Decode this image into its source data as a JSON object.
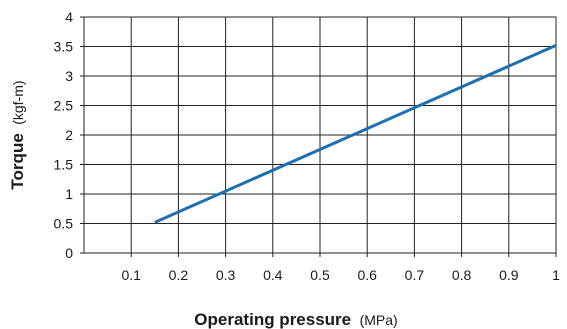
{
  "chart_data": {
    "type": "line",
    "title": "",
    "xlabel": "Operating pressure",
    "xlabel_unit": "(MPa)",
    "ylabel": "Torque",
    "ylabel_unit": "(kgf-m)",
    "xlim": [
      0,
      1
    ],
    "ylim": [
      0,
      4
    ],
    "x_ticks": [
      "0.1",
      "0.2",
      "0.3",
      "0.4",
      "0.5",
      "0.6",
      "0.7",
      "0.8",
      "0.9",
      "1"
    ],
    "y_ticks": [
      "0",
      "0.5",
      "1",
      "1.5",
      "2",
      "2.5",
      "3",
      "3.5",
      "4"
    ],
    "x_tick_values": [
      0.1,
      0.2,
      0.3,
      0.4,
      0.5,
      0.6,
      0.7,
      0.8,
      0.9,
      1
    ],
    "y_tick_values": [
      0,
      0.5,
      1,
      1.5,
      2,
      2.5,
      3,
      3.5,
      4
    ],
    "grid": true,
    "series": [
      {
        "color": "#1f6fb4",
        "x": [
          0.15,
          1.0
        ],
        "y": [
          0.52,
          3.52
        ]
      }
    ]
  }
}
